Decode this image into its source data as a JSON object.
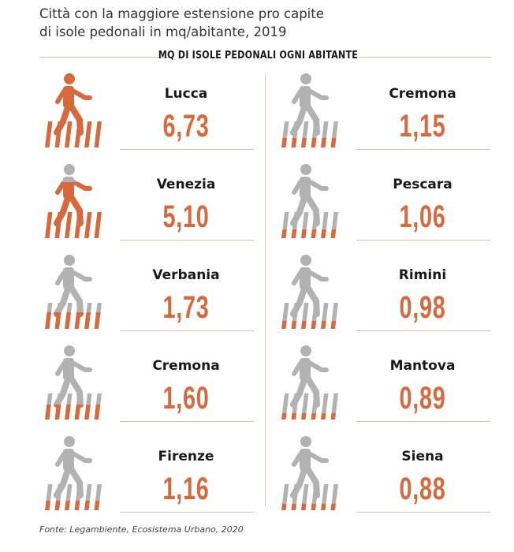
{
  "title_line1": "Città con la maggiore estensione pro capite",
  "title_line2": "di isole pedonali in mq/abitante, 2019",
  "header": "MQ DI ISOLE PEDONALI OGNI ABITANTE",
  "source": "Fonte: Legambiente, Ecosistema Urbano, 2020",
  "colors": {
    "accent": "#d7693e",
    "gray": "#b2b2b2",
    "rule": "#dcbfaa"
  },
  "chart_data": {
    "type": "table",
    "categories": [
      "Lucca",
      "Venezia",
      "Verbania",
      "Cremona",
      "Firenze",
      "Cremona",
      "Pescara",
      "Rimini",
      "Mantova",
      "Siena"
    ],
    "values": [
      6.73,
      5.1,
      1.73,
      1.6,
      1.16,
      1.15,
      1.06,
      0.98,
      0.89,
      0.88
    ],
    "value_labels": [
      "6,73",
      "5,10",
      "1,73",
      "1,60",
      "1,16",
      "1,15",
      "1,06",
      "0,98",
      "0,89",
      "0,88"
    ],
    "fill_fraction": [
      1.0,
      0.76,
      0.26,
      0.24,
      0.17,
      0.17,
      0.16,
      0.15,
      0.13,
      0.13
    ],
    "icon": "pedestrian-crossing-icon"
  }
}
